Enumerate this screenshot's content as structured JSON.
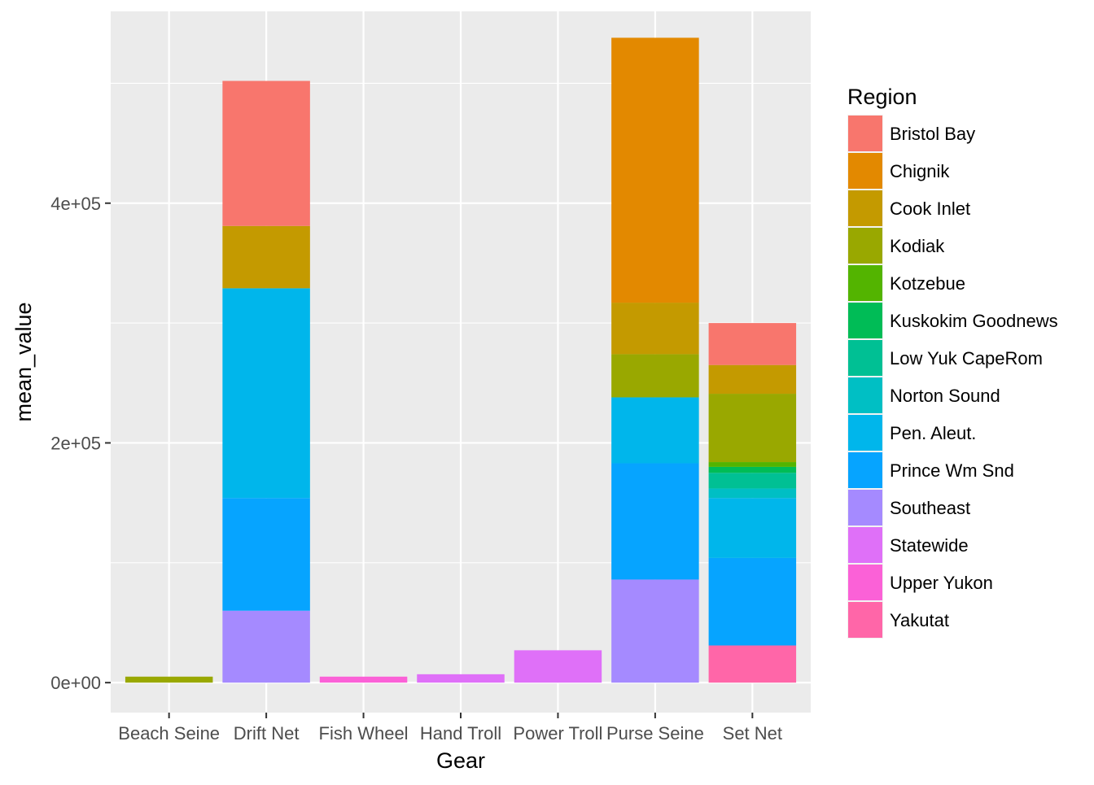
{
  "chart_data": {
    "type": "bar",
    "stacked": true,
    "xlabel": "Gear",
    "ylabel": "mean_value",
    "categories": [
      "Beach Seine",
      "Drift Net",
      "Fish Wheel",
      "Hand Troll",
      "Power Troll",
      "Purse Seine",
      "Set Net"
    ],
    "ylim": [
      -25000,
      560000
    ],
    "yticks": [
      0,
      200000,
      400000
    ],
    "ytick_labels": [
      "0e+00",
      "2e+05",
      "4e+05"
    ],
    "grid": true,
    "legend": {
      "title": "Region",
      "position": "right",
      "entries": [
        {
          "name": "Bristol Bay",
          "color": "#F8766D"
        },
        {
          "name": "Chignik",
          "color": "#E38900"
        },
        {
          "name": "Cook Inlet",
          "color": "#C49A00"
        },
        {
          "name": "Kodiak",
          "color": "#99A800"
        },
        {
          "name": "Kotzebue",
          "color": "#53B400"
        },
        {
          "name": "Kuskokim Goodnews",
          "color": "#00BC56"
        },
        {
          "name": "Low Yuk CapeRom",
          "color": "#00C094"
        },
        {
          "name": "Norton Sound",
          "color": "#00BFC4"
        },
        {
          "name": "Pen. Aleut.",
          "color": "#00B6EB"
        },
        {
          "name": "Prince Wm Snd",
          "color": "#06A4FF"
        },
        {
          "name": "Southeast",
          "color": "#A58AFF"
        },
        {
          "name": "Statewide",
          "color": "#DF70F8"
        },
        {
          "name": "Upper Yukon",
          "color": "#FB61D7"
        },
        {
          "name": "Yakutat",
          "color": "#FF66A8"
        }
      ]
    },
    "stacks": [
      {
        "category": "Beach Seine",
        "segments": [
          {
            "region": "Kodiak",
            "value": 5000
          }
        ]
      },
      {
        "category": "Drift Net",
        "segments": [
          {
            "region": "Bristol Bay",
            "value": 121000
          },
          {
            "region": "Cook Inlet",
            "value": 52000
          },
          {
            "region": "Pen. Aleut.",
            "value": 175000
          },
          {
            "region": "Prince Wm Snd",
            "value": 94000
          },
          {
            "region": "Southeast",
            "value": 60000
          }
        ]
      },
      {
        "category": "Fish Wheel",
        "segments": [
          {
            "region": "Upper Yukon",
            "value": 5000
          }
        ]
      },
      {
        "category": "Hand Troll",
        "segments": [
          {
            "region": "Statewide",
            "value": 7000
          }
        ]
      },
      {
        "category": "Power Troll",
        "segments": [
          {
            "region": "Statewide",
            "value": 27000
          }
        ]
      },
      {
        "category": "Purse Seine",
        "segments": [
          {
            "region": "Chignik",
            "value": 221000
          },
          {
            "region": "Cook Inlet",
            "value": 43000
          },
          {
            "region": "Kodiak",
            "value": 36000
          },
          {
            "region": "Pen. Aleut.",
            "value": 55000
          },
          {
            "region": "Prince Wm Snd",
            "value": 97000
          },
          {
            "region": "Southeast",
            "value": 86000
          }
        ]
      },
      {
        "category": "Set Net",
        "segments": [
          {
            "region": "Bristol Bay",
            "value": 35000
          },
          {
            "region": "Cook Inlet",
            "value": 24000
          },
          {
            "region": "Kodiak",
            "value": 57000
          },
          {
            "region": "Kotzebue",
            "value": 4000
          },
          {
            "region": "Kuskokim Goodnews",
            "value": 5000
          },
          {
            "region": "Low Yuk CapeRom",
            "value": 13000
          },
          {
            "region": "Norton Sound",
            "value": 8000
          },
          {
            "region": "Pen. Aleut.",
            "value": 50000
          },
          {
            "region": "Prince Wm Snd",
            "value": 73000
          },
          {
            "region": "Yakutat",
            "value": 31000
          }
        ]
      }
    ]
  }
}
